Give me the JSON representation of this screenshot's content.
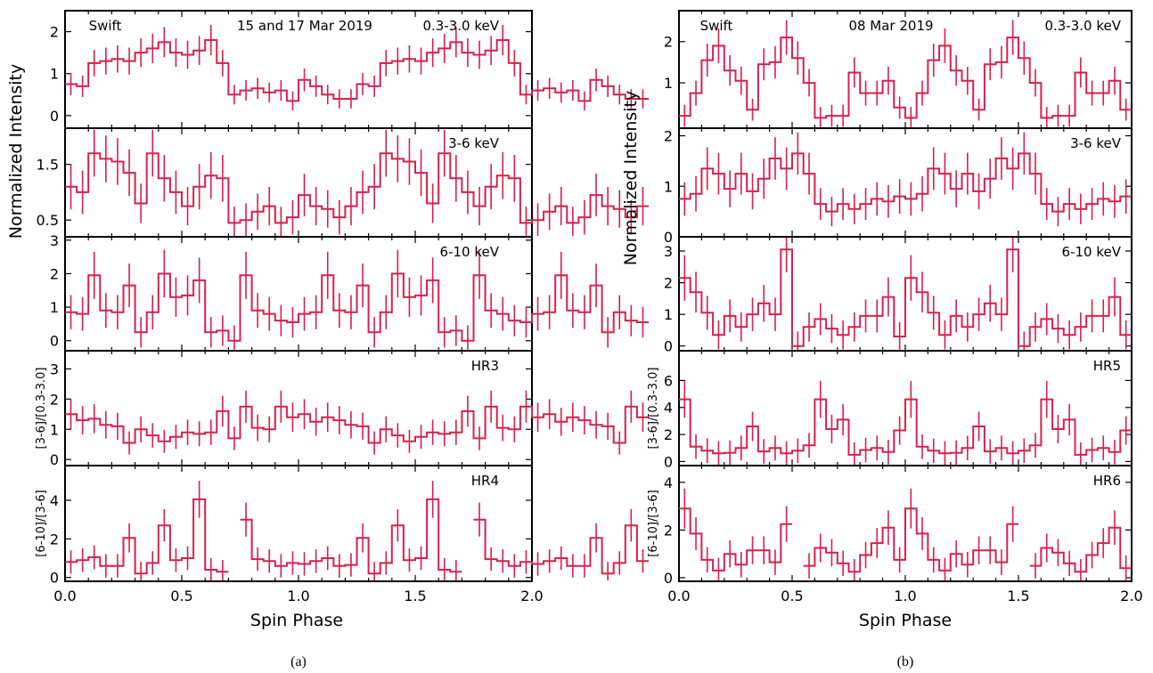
{
  "figures": [
    {
      "label": "(a)",
      "xlabel": "Spin Phase",
      "ylabel_main": "Normalized Intensity",
      "x_ticks": [
        "0.0",
        "0.5",
        "1.0",
        "1.5",
        "2.0"
      ],
      "panels": [
        {
          "labels": {
            "left": "Swift",
            "center": "15 and 17 Mar 2019",
            "right": "0.3-3.0 keV"
          },
          "ylabel": "",
          "ylim": [
            -0.3,
            2.5
          ],
          "y_ticks": [
            0,
            1,
            2
          ],
          "chart_data": {
            "type": "line",
            "x_start": 0.0,
            "bin_width": 0.05,
            "values": [
              0.75,
              0.7,
              1.25,
              1.3,
              1.35,
              1.3,
              1.5,
              1.6,
              1.75,
              1.5,
              1.45,
              1.55,
              1.8,
              1.25,
              0.5,
              0.6,
              0.65,
              0.55,
              0.6,
              0.35,
              0.85,
              0.7,
              0.5,
              0.4,
              0.4,
              0.75,
              0.7,
              1.25,
              1.3,
              1.35,
              1.3,
              1.5,
              1.6,
              1.75,
              1.5,
              1.45,
              1.55,
              1.8,
              1.25,
              0.5,
              0.6,
              0.65,
              0.55,
              0.6,
              0.35,
              0.85,
              0.7,
              0.5,
              0.4,
              0.4
            ],
            "error": 0.3
          }
        },
        {
          "labels": {
            "left": "",
            "center": "",
            "right": "3-6 keV"
          },
          "ylabel": "",
          "ylim": [
            0.2,
            2.15
          ],
          "y_ticks": [
            0.5,
            1.5
          ],
          "chart_data": {
            "type": "line",
            "x_start": 0.0,
            "bin_width": 0.05,
            "values": [
              1.1,
              1.0,
              1.7,
              1.6,
              1.55,
              1.35,
              0.8,
              1.7,
              1.25,
              1.0,
              0.75,
              1.1,
              1.3,
              1.25,
              0.45,
              0.5,
              0.65,
              0.75,
              0.45,
              0.55,
              0.95,
              0.75,
              0.7,
              0.55,
              0.75,
              1.0,
              1.1,
              1.7,
              1.6,
              1.55,
              1.35,
              0.8,
              1.7,
              1.25,
              1.0,
              0.75,
              1.1,
              1.3,
              1.25,
              0.45,
              0.5,
              0.65,
              0.75,
              0.45,
              0.55,
              0.95,
              0.75,
              0.7,
              0.55,
              0.75
            ],
            "error": 0.35
          }
        },
        {
          "labels": {
            "left": "",
            "center": "",
            "right": "6-10 keV"
          },
          "ylabel": "",
          "ylim": [
            -0.3,
            3.1
          ],
          "y_ticks": [
            0,
            1,
            2,
            3
          ],
          "chart_data": {
            "type": "line",
            "x_start": 0.0,
            "bin_width": 0.05,
            "values": [
              0.85,
              0.8,
              1.95,
              0.9,
              0.85,
              1.65,
              0.25,
              0.85,
              2.0,
              1.3,
              1.35,
              1.8,
              0.25,
              0.3,
              0.0,
              1.95,
              0.9,
              0.8,
              0.6,
              0.55,
              0.8,
              0.85,
              1.95,
              0.9,
              0.85,
              1.65,
              0.25,
              0.85,
              2.0,
              1.3,
              1.35,
              1.8,
              0.25,
              0.3,
              0.0,
              1.95,
              0.9,
              0.8,
              0.6,
              0.55,
              0.8,
              0.85,
              1.95,
              0.9,
              0.85,
              1.65,
              0.25,
              0.85,
              0.6,
              0.55
            ],
            "error": 0.6
          }
        },
        {
          "labels": {
            "left": "",
            "center": "",
            "right": "HR3"
          },
          "ylabel": "[3-6]/[0.3-3.0]",
          "ylim": [
            -0.2,
            3.6
          ],
          "y_ticks": [
            0,
            1,
            2,
            3
          ],
          "chart_data": {
            "type": "line",
            "x_start": 0.0,
            "bin_width": 0.05,
            "values": [
              1.5,
              1.3,
              1.35,
              1.15,
              1.1,
              0.55,
              1.0,
              0.8,
              0.6,
              0.75,
              0.9,
              0.85,
              0.9,
              1.6,
              0.7,
              1.75,
              1.05,
              1.0,
              1.75,
              1.4,
              1.5,
              1.25,
              1.4,
              1.3,
              1.15,
              1.1,
              0.55,
              1.0,
              0.8,
              0.6,
              0.75,
              0.9,
              0.85,
              0.9,
              1.6,
              0.7,
              1.75,
              1.05,
              1.0,
              1.75,
              1.4,
              1.5,
              1.25,
              1.4,
              1.3,
              1.15,
              1.1,
              0.55,
              1.75,
              1.4
            ],
            "error": 0.5
          }
        },
        {
          "labels": {
            "left": "",
            "center": "",
            "right": "HR4"
          },
          "ylabel": "[6-10]/[3-6]",
          "ylim": [
            -0.2,
            5.8
          ],
          "y_ticks": [
            0,
            2,
            4
          ],
          "chart_data": {
            "type": "line",
            "x_start": 0.0,
            "bin_width": 0.05,
            "values": [
              0.8,
              0.9,
              1.05,
              0.6,
              0.6,
              2.05,
              0.2,
              0.75,
              2.7,
              0.9,
              1.0,
              4.05,
              0.4,
              0.3,
              null,
              3.0,
              0.95,
              0.85,
              0.6,
              0.75,
              0.7,
              0.85,
              1.0,
              0.6,
              0.65,
              2.05,
              0.2,
              0.75,
              2.7,
              0.9,
              1.0,
              4.05,
              0.4,
              0.3,
              null,
              3.0,
              0.95,
              0.85,
              0.6,
              0.8,
              0.7,
              0.85,
              1.0,
              0.6,
              0.6,
              2.05,
              0.2,
              0.75,
              2.7,
              0.85
            ],
            "error": 0.8
          }
        }
      ]
    },
    {
      "label": "(b)",
      "xlabel": "Spin Phase",
      "ylabel_main": "Normalized Intensity",
      "x_ticks": [
        "0.0",
        "0.5",
        "1.0",
        "1.5",
        "2.0"
      ],
      "panels": [
        {
          "labels": {
            "left": "Swift",
            "center": "08 Mar 2019",
            "right": "0.3-3.0 keV"
          },
          "ylabel": "",
          "ylim": [
            -0.1,
            2.75
          ],
          "y_ticks": [
            1,
            2
          ],
          "chart_data": {
            "type": "line",
            "x_start": 0.0,
            "bin_width": 0.05,
            "values": [
              0.2,
              0.75,
              1.55,
              1.9,
              1.3,
              1.05,
              0.35,
              1.45,
              1.5,
              2.1,
              1.6,
              1.0,
              0.15,
              0.2,
              0.2,
              1.25,
              0.75,
              0.75,
              1.05,
              0.4,
              0.15,
              0.75,
              1.55,
              1.9,
              1.3,
              1.05,
              0.35,
              1.45,
              1.5,
              2.1,
              1.6,
              1.0,
              0.15,
              0.2,
              0.2,
              1.25,
              0.75,
              0.75,
              1.05,
              0.35
            ],
            "error": 0.35
          }
        },
        {
          "labels": {
            "left": "",
            "center": "",
            "right": "3-6 keV"
          },
          "ylabel": "",
          "ylim": [
            0.0,
            2.15
          ],
          "y_ticks": [
            0,
            1,
            2
          ],
          "chart_data": {
            "type": "line",
            "x_start": 0.0,
            "bin_width": 0.05,
            "values": [
              0.75,
              0.85,
              1.35,
              1.25,
              0.95,
              1.25,
              0.9,
              1.15,
              1.55,
              1.35,
              1.65,
              1.25,
              0.65,
              0.5,
              0.65,
              0.55,
              0.65,
              0.75,
              0.7,
              0.8,
              0.75,
              0.85,
              1.35,
              1.25,
              0.95,
              1.25,
              0.9,
              1.15,
              1.55,
              1.35,
              1.65,
              1.25,
              0.65,
              0.5,
              0.65,
              0.55,
              0.65,
              0.75,
              0.7,
              0.8
            ],
            "error": 0.35
          }
        },
        {
          "labels": {
            "left": "",
            "center": "",
            "right": "6-10 keV"
          },
          "ylabel": "",
          "ylim": [
            -0.15,
            3.45
          ],
          "y_ticks": [
            0,
            1,
            2,
            3
          ],
          "chart_data": {
            "type": "line",
            "x_start": 0.0,
            "bin_width": 0.05,
            "values": [
              2.15,
              1.7,
              1.05,
              0.35,
              0.95,
              0.6,
              1.0,
              1.35,
              1.0,
              3.05,
              0.0,
              0.6,
              0.85,
              0.55,
              0.35,
              0.6,
              0.95,
              0.95,
              1.55,
              0.3,
              2.15,
              1.7,
              1.05,
              0.35,
              0.95,
              0.6,
              1.0,
              1.35,
              1.0,
              3.05,
              0.0,
              0.6,
              0.85,
              0.55,
              0.35,
              0.6,
              0.95,
              0.95,
              1.55,
              0.35
            ],
            "error": 0.6
          }
        },
        {
          "labels": {
            "left": "",
            "center": "",
            "right": "HR5"
          },
          "ylabel": "[3-6]/[0.3-3.0]",
          "ylim": [
            -0.3,
            8.2
          ],
          "y_ticks": [
            0,
            2,
            4,
            6
          ],
          "chart_data": {
            "type": "line",
            "x_start": 0.0,
            "bin_width": 0.05,
            "values": [
              4.6,
              1.1,
              0.8,
              0.6,
              0.65,
              1.0,
              2.6,
              0.75,
              1.0,
              0.6,
              0.8,
              1.2,
              4.6,
              2.4,
              3.1,
              0.5,
              0.85,
              1.0,
              0.7,
              2.3,
              4.6,
              1.1,
              0.8,
              0.6,
              0.65,
              1.0,
              2.6,
              0.75,
              1.0,
              0.6,
              0.8,
              1.2,
              4.6,
              2.4,
              3.1,
              0.5,
              0.85,
              1.0,
              0.7,
              2.3
            ],
            "error": 1.2
          }
        },
        {
          "labels": {
            "left": "",
            "center": "",
            "right": "HR6"
          },
          "ylabel": "[6-10]/[3-6]",
          "ylim": [
            -0.15,
            4.7
          ],
          "y_ticks": [
            0,
            2,
            4
          ],
          "chart_data": {
            "type": "line",
            "x_start": 0.0,
            "bin_width": 0.05,
            "values": [
              2.9,
              1.85,
              0.75,
              0.3,
              1.0,
              0.55,
              1.15,
              1.15,
              0.65,
              2.25,
              null,
              0.5,
              1.25,
              1.05,
              0.6,
              0.25,
              0.95,
              1.45,
              2.1,
              0.75,
              2.9,
              1.85,
              0.75,
              0.3,
              1.0,
              0.55,
              1.15,
              1.15,
              0.65,
              2.25,
              null,
              0.5,
              1.25,
              1.05,
              0.6,
              0.25,
              0.95,
              1.45,
              2.1,
              0.4
            ],
            "error": 0.7
          }
        }
      ]
    }
  ]
}
